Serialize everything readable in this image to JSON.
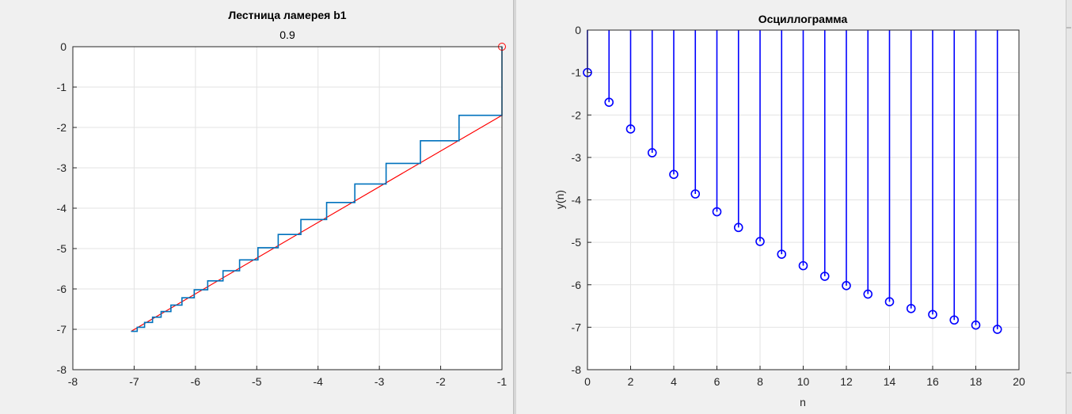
{
  "chart_data": [
    {
      "type": "line",
      "title": "Лестница ламерея b1",
      "subtitle": "0.9",
      "xlabel": "",
      "ylabel": "",
      "xlim": [
        -8,
        -1
      ],
      "ylim": [
        -8,
        0
      ],
      "xticks": [
        "-8",
        "-7",
        "-6",
        "-5",
        "-4",
        "-3",
        "-2",
        "-1"
      ],
      "yticks": [
        "0",
        "-1",
        "-2",
        "-3",
        "-4",
        "-5",
        "-6",
        "-7",
        "-8"
      ],
      "grid": true,
      "colors": {
        "staircase": "#0072bd",
        "bounds": "#ff0000",
        "start_marker": "#ff0000"
      },
      "start_point": [
        -1,
        0
      ],
      "series": [
        {
          "values": [
            0,
            -1.7,
            -2.33,
            -2.89,
            -3.4,
            -3.86,
            -4.28,
            -4.65,
            -4.98,
            -5.28,
            -5.55,
            -5.8,
            -6.02,
            -6.22,
            -6.4,
            -6.56,
            -6.7,
            -6.83,
            -6.95,
            -7.05
          ]
        }
      ],
      "bounds": [
        {
          "x": [
            -7.05,
            -1
          ],
          "y": [
            -7.05,
            -1.7
          ]
        },
        {
          "x": [
            -7.05,
            -1
          ],
          "y": [
            -7.05,
            -1.7
          ]
        }
      ]
    },
    {
      "type": "stem",
      "title": "Осциллограмма",
      "xlabel": "n",
      "ylabel": "y(n)",
      "xlim": [
        0,
        20
      ],
      "ylim": [
        -8,
        0
      ],
      "xticks": [
        "0",
        "2",
        "4",
        "6",
        "8",
        "10",
        "12",
        "14",
        "16",
        "18",
        "20"
      ],
      "yticks": [
        "0",
        "-1",
        "-2",
        "-3",
        "-4",
        "-5",
        "-6",
        "-7",
        "-8"
      ],
      "grid": true,
      "colors": {
        "stem": "#0000ff"
      },
      "x": [
        0,
        1,
        2,
        3,
        4,
        5,
        6,
        7,
        8,
        9,
        10,
        11,
        12,
        13,
        14,
        15,
        16,
        17,
        18,
        19
      ],
      "values": [
        -1,
        -1.7,
        -2.33,
        -2.89,
        -3.4,
        -3.86,
        -4.28,
        -4.65,
        -4.98,
        -5.28,
        -5.55,
        -5.8,
        -6.02,
        -6.22,
        -6.4,
        -6.56,
        -6.7,
        -6.83,
        -6.95,
        -7.05
      ]
    }
  ]
}
